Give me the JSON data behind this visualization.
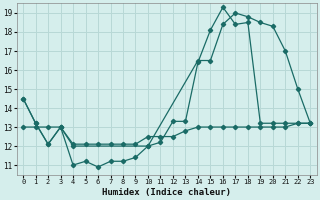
{
  "xlabel": "Humidex (Indice chaleur)",
  "bg_color": "#d5eeec",
  "grid_color": "#b8d8d6",
  "line_color": "#1a6b66",
  "xlim": [
    -0.5,
    23.5
  ],
  "ylim": [
    10.5,
    19.5
  ],
  "xticks": [
    0,
    1,
    2,
    3,
    4,
    5,
    6,
    7,
    8,
    9,
    10,
    11,
    12,
    13,
    14,
    15,
    16,
    17,
    18,
    19,
    20,
    21,
    22,
    23
  ],
  "yticks": [
    11,
    12,
    13,
    14,
    15,
    16,
    17,
    18,
    19
  ],
  "line1_x": [
    0,
    1,
    2,
    3,
    4,
    5,
    6,
    7,
    8,
    9,
    10,
    11,
    12,
    13,
    14,
    15,
    16,
    17,
    18,
    19,
    20,
    21,
    22,
    23
  ],
  "line1_y": [
    14.5,
    13.2,
    12.1,
    13.0,
    11.0,
    11.2,
    10.9,
    11.2,
    11.2,
    11.4,
    12.0,
    12.2,
    13.3,
    13.3,
    16.4,
    18.1,
    19.3,
    18.4,
    18.5,
    13.2,
    13.2,
    13.2,
    13.2,
    13.2
  ],
  "line2_x": [
    0,
    1,
    2,
    3,
    4,
    5,
    6,
    7,
    8,
    9,
    10,
    11,
    12,
    13,
    14,
    15,
    16,
    17,
    18,
    19,
    20,
    21,
    22,
    23
  ],
  "line2_y": [
    13.0,
    13.0,
    13.0,
    13.0,
    12.1,
    12.1,
    12.1,
    12.1,
    12.1,
    12.1,
    12.5,
    12.5,
    12.5,
    12.8,
    13.0,
    13.0,
    13.0,
    13.0,
    13.0,
    13.0,
    13.0,
    13.0,
    13.2,
    13.2
  ],
  "line3_x": [
    0,
    1,
    2,
    3,
    4,
    10,
    14,
    15,
    16,
    17,
    18,
    19,
    20,
    21,
    22,
    23
  ],
  "line3_y": [
    14.5,
    13.2,
    12.1,
    13.0,
    12.0,
    12.0,
    16.5,
    16.5,
    18.4,
    19.0,
    18.8,
    18.5,
    18.3,
    17.0,
    15.0,
    13.2
  ]
}
